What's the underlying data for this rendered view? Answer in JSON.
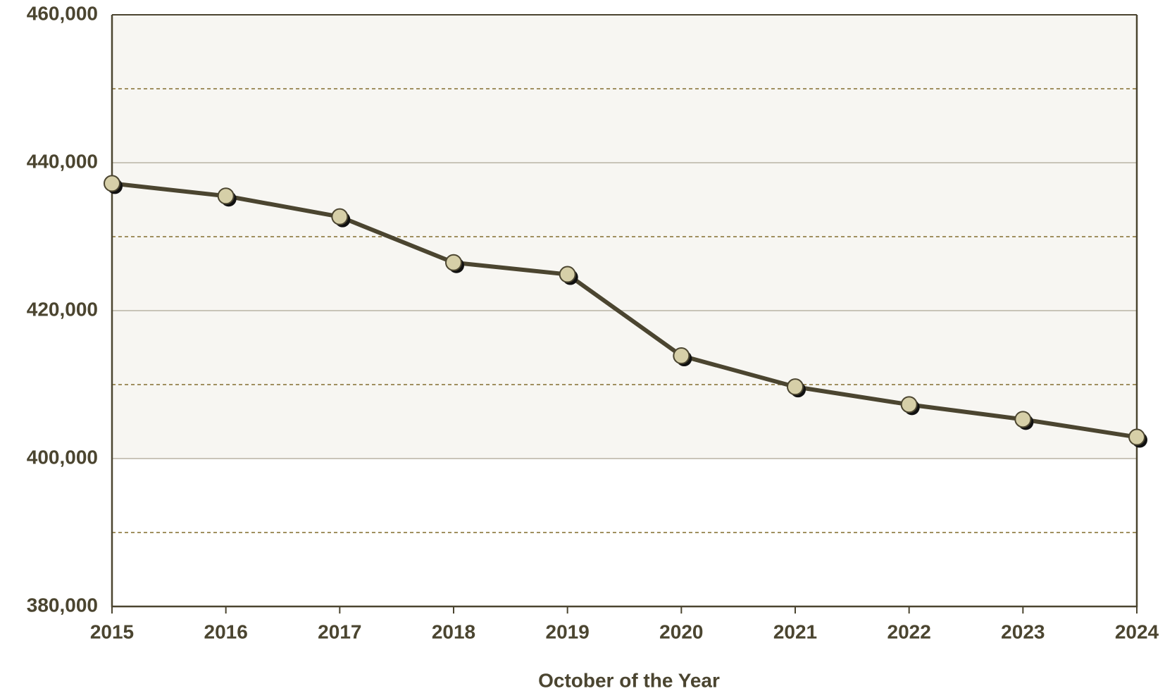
{
  "chart_data": {
    "type": "line",
    "x_label": "October of the Year",
    "x": [
      2015,
      2016,
      2017,
      2018,
      2019,
      2020,
      2021,
      2022,
      2023,
      2024
    ],
    "series": [
      {
        "color": "#4b4530",
        "marker_color": "#d6cfa8",
        "values": [
          437200,
          435500,
          432700,
          426500,
          424900,
          413900,
          409700,
          407300,
          405300,
          402900
        ]
      }
    ],
    "xlim": [
      2015,
      2024
    ],
    "xticks": [
      2015,
      2016,
      2017,
      2018,
      2019,
      2020,
      2021,
      2022,
      2023,
      2024
    ],
    "ylim": [
      380000,
      460000
    ],
    "yticks": [
      {
        "value": 380000,
        "label": "380,000"
      },
      {
        "value": 400000,
        "label": "400,000"
      },
      {
        "value": 420000,
        "label": "420,000"
      },
      {
        "value": 440000,
        "label": "440,000"
      },
      {
        "value": 460000,
        "label": "460,000"
      }
    ],
    "minor_yticks": [
      390000,
      410000,
      430000,
      450000
    ],
    "shaded_band": [
      400000,
      460000
    ],
    "grid": true
  }
}
